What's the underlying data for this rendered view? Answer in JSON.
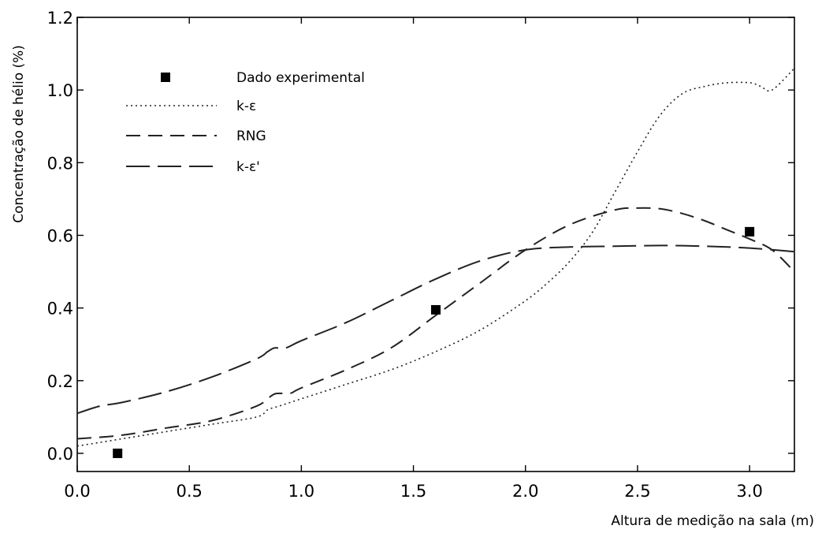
{
  "chart_data": {
    "type": "line",
    "xlabel": "Altura de medição na sala (m)",
    "ylabel": "Concentração de hélio (%)",
    "xlim": [
      0,
      3.2
    ],
    "ylim": [
      -0.05,
      1.2
    ],
    "xticks": [
      "0.0",
      "0.5",
      "1.0",
      "1.5",
      "2.0",
      "2.5",
      "3.0"
    ],
    "xtick_values": [
      0,
      0.5,
      1.0,
      1.5,
      2.0,
      2.5,
      3.0
    ],
    "yticks": [
      "0.0",
      "0.2",
      "0.4",
      "0.6",
      "0.8",
      "1.0",
      "1.2"
    ],
    "ytick_values": [
      0,
      0.2,
      0.4,
      0.6,
      0.8,
      1.0,
      1.2
    ],
    "grid": false,
    "legend_position": "top-left",
    "legend": [
      {
        "label": "Dado experimental",
        "style": "marker-square"
      },
      {
        "label": "k-ε",
        "style": "dotted"
      },
      {
        "label": "RNG",
        "style": "dashed"
      },
      {
        "label": "k-ε'",
        "style": "long-dashed"
      }
    ],
    "series": [
      {
        "name": "Dado experimental",
        "kind": "scatter",
        "x": [
          0.18,
          1.6,
          3.0
        ],
        "y": [
          0.0,
          0.395,
          0.61
        ]
      },
      {
        "name": "k-ε",
        "kind": "line",
        "dash": "dotted",
        "x": [
          0,
          0.2,
          0.4,
          0.6,
          0.8,
          0.85,
          0.9,
          1.0,
          1.2,
          1.4,
          1.6,
          1.8,
          2.0,
          2.1,
          2.2,
          2.3,
          2.4,
          2.5,
          2.6,
          2.7,
          2.8,
          2.9,
          3.0,
          3.05,
          3.1,
          3.2
        ],
        "y": [
          0.02,
          0.04,
          0.06,
          0.08,
          0.1,
          0.12,
          0.13,
          0.15,
          0.19,
          0.23,
          0.28,
          0.34,
          0.42,
          0.47,
          0.53,
          0.61,
          0.72,
          0.83,
          0.93,
          0.99,
          1.01,
          1.02,
          1.02,
          1.01,
          1.0,
          1.06
        ]
      },
      {
        "name": "RNG",
        "kind": "line",
        "dash": "dashed",
        "x": [
          0,
          0.2,
          0.4,
          0.6,
          0.8,
          0.87,
          0.9,
          0.95,
          1.0,
          1.2,
          1.4,
          1.6,
          1.8,
          2.0,
          2.2,
          2.4,
          2.5,
          2.6,
          2.7,
          2.8,
          2.9,
          3.0,
          3.1,
          3.2
        ],
        "y": [
          0.04,
          0.05,
          0.07,
          0.09,
          0.13,
          0.16,
          0.165,
          0.165,
          0.18,
          0.23,
          0.29,
          0.38,
          0.47,
          0.56,
          0.63,
          0.67,
          0.675,
          0.673,
          0.66,
          0.64,
          0.615,
          0.59,
          0.56,
          0.5
        ]
      },
      {
        "name": "k-ε'",
        "kind": "line",
        "dash": "long-dashed",
        "x": [
          0,
          0.1,
          0.2,
          0.4,
          0.6,
          0.8,
          0.85,
          0.88,
          0.93,
          1.0,
          1.2,
          1.4,
          1.6,
          1.8,
          2.0,
          2.2,
          2.4,
          2.6,
          2.8,
          3.0,
          3.2
        ],
        "y": [
          0.11,
          0.13,
          0.14,
          0.17,
          0.21,
          0.26,
          0.28,
          0.29,
          0.29,
          0.31,
          0.36,
          0.42,
          0.48,
          0.53,
          0.56,
          0.568,
          0.57,
          0.572,
          0.57,
          0.565,
          0.555
        ]
      }
    ]
  }
}
